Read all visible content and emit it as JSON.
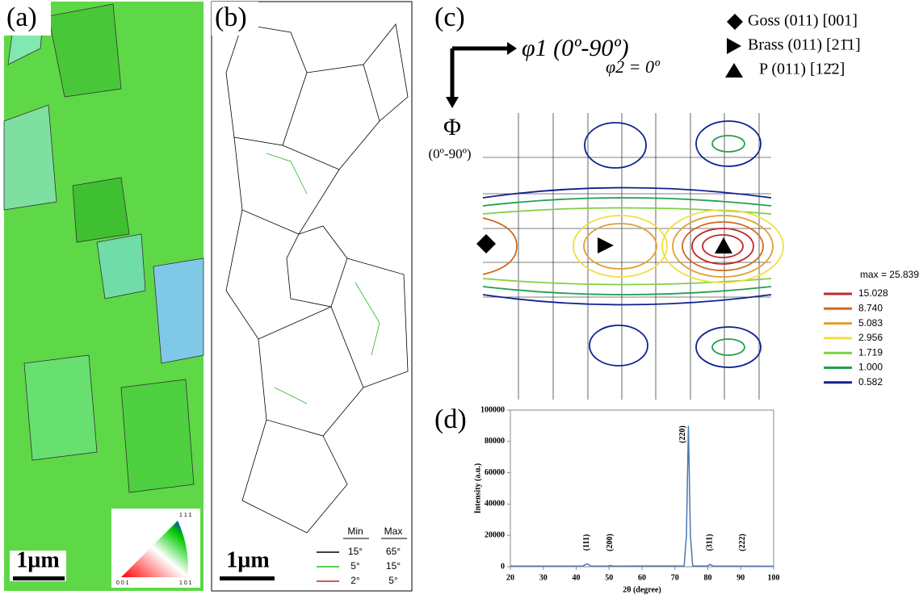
{
  "panel_a": {
    "label": "(a)",
    "scale": "1µm",
    "ipf": [
      "1 1 1",
      "0 0 1",
      "1 0 1"
    ]
  },
  "panel_b": {
    "label": "(b)",
    "scale": "1µm",
    "legend_header": [
      "Min",
      "Max"
    ],
    "legend_rows": [
      {
        "min": "15°",
        "max": "65°",
        "color": "#000000"
      },
      {
        "min": "5°",
        "max": "15°",
        "color": "#22bb22"
      },
      {
        "min": "2°",
        "max": "5°",
        "color": "#cc2222"
      }
    ]
  },
  "panel_c": {
    "label": "(c)",
    "phi1": "φ1 (0º-90º)",
    "phi2": "φ2 = 0º",
    "Phi": "Φ",
    "Phi_range": "(0º-90º)",
    "orientations": [
      "Goss (011) [001]",
      "Brass (011) [21̄1]",
      "P    (011) [12̄2]"
    ],
    "max": "max = 25.839",
    "levels": [
      {
        "label": "15.028",
        "color": "#c0282a"
      },
      {
        "label": "8.740",
        "color": "#d2691e"
      },
      {
        "label": "5.083",
        "color": "#e0a030"
      },
      {
        "label": "2.956",
        "color": "#eee040"
      },
      {
        "label": "1.719",
        "color": "#80d040"
      },
      {
        "label": "1.000",
        "color": "#20a050"
      },
      {
        "label": "0.582",
        "color": "#102090"
      }
    ]
  },
  "panel_d": {
    "label": "(d)"
  },
  "chart_data": {
    "type": "line",
    "xlabel": "2θ (degree)",
    "ylabel": "Intensity  (a.u.)",
    "x": [
      20,
      42,
      43.3,
      44.5,
      49.5,
      50.4,
      51.3,
      72.8,
      73.5,
      74.1,
      74.7,
      75.4,
      79.8,
      80.7,
      81.6,
      100
    ],
    "values": [
      400,
      400,
      1800,
      400,
      400,
      700,
      400,
      500,
      20000,
      90000,
      20000,
      500,
      400,
      1500,
      400,
      300
    ],
    "color": "#4a78b0",
    "xlim": [
      20,
      100
    ],
    "xticks": [
      20,
      30,
      40,
      50,
      60,
      70,
      80,
      90,
      100
    ],
    "ylim": [
      0,
      100000
    ],
    "yticks": [
      0,
      20000,
      40000,
      60000,
      80000,
      100000
    ],
    "annotations": [
      {
        "text": "(111)",
        "x": 43.3
      },
      {
        "text": "(200)",
        "x": 50.4
      },
      {
        "text": "(220)",
        "x": 74.1
      },
      {
        "text": "(311)",
        "x": 80.7
      },
      {
        "text": "(222)",
        "x": 90.6
      }
    ]
  }
}
